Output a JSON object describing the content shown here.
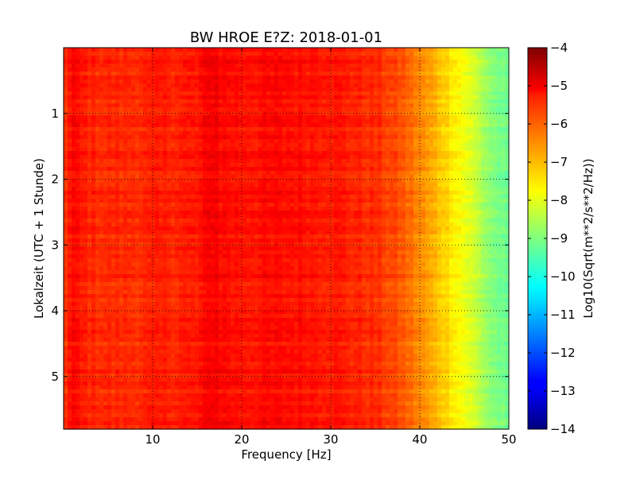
{
  "chart_data": {
    "type": "heatmap",
    "title": "BW HROE E?Z: 2018-01-01",
    "xlabel": "Frequency [Hz]",
    "ylabel": "Lokalzeit (UTC + 1 Stunde)",
    "xlim": [
      0,
      50
    ],
    "ylim": [
      0,
      5.8
    ],
    "y_inverted": true,
    "grid": true,
    "x_ticks": [
      10,
      20,
      30,
      40,
      50
    ],
    "x_tick_labels": [
      "10",
      "20",
      "30",
      "40",
      "50"
    ],
    "y_ticks": [
      1,
      2,
      3,
      4,
      5
    ],
    "y_tick_labels": [
      "1",
      "2",
      "3",
      "4",
      "5"
    ],
    "colorbar": {
      "label": "Log10(Sqrt(m**2/s**2/Hz))",
      "range": [
        -14,
        -4
      ],
      "colormap": "jet",
      "ticks": [
        -4,
        -5,
        -6,
        -7,
        -8,
        -9,
        -10,
        -11,
        -12,
        -13,
        -14
      ],
      "tick_labels": [
        "−4",
        "−5",
        "−6",
        "−7",
        "−8",
        "−9",
        "−10",
        "−11",
        "−12",
        "−13",
        "−14"
      ]
    },
    "spectrum_profile": {
      "frequency_hz": [
        0,
        1,
        2,
        3,
        5,
        8,
        10,
        12,
        15,
        16.5,
        17,
        17.5,
        20,
        25,
        30,
        35,
        38,
        40,
        42,
        44,
        46,
        48,
        50
      ],
      "log_amplitude": [
        -5.8,
        -5.3,
        -5.5,
        -5.6,
        -5.65,
        -5.65,
        -5.6,
        -5.55,
        -5.5,
        -5.2,
        -5.1,
        -5.3,
        -5.4,
        -5.35,
        -5.45,
        -5.7,
        -6.1,
        -6.6,
        -7.1,
        -7.6,
        -8.2,
        -8.9,
        -9.3
      ]
    },
    "note_values": {
      "strong_line_frequency_hz": 16.7
    }
  }
}
